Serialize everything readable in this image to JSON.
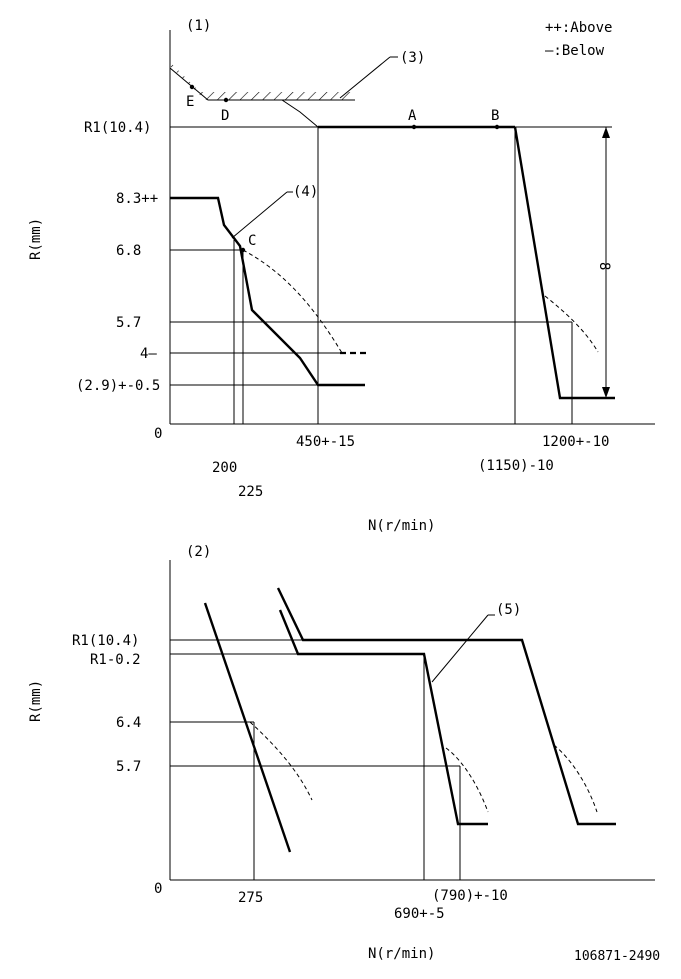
{
  "legend": {
    "above": "++:Above",
    "below": "—:Below"
  },
  "upper": {
    "panel": "(1)",
    "ylabel": "R(mm)",
    "xlabel": "N(r/min)",
    "origin": "0",
    "y_ticks": [
      "R1(10.4)",
      "8.3++",
      "6.8",
      "5.7",
      "4—",
      "(2.9)+-0.5"
    ],
    "x_ticks": [
      "200",
      "225",
      "450+-15",
      "(1150)-10",
      "1200+-10"
    ],
    "points": [
      "A",
      "B",
      "C",
      "D",
      "E"
    ],
    "callouts": [
      "(3)",
      "(4)"
    ],
    "dim": "8"
  },
  "lower": {
    "panel": "(2)",
    "ylabel": "R(mm)",
    "xlabel": "N(r/min)",
    "origin": "0",
    "y_ticks": [
      "R1(10.4)",
      "R1-0.2",
      "6.4",
      "5.7"
    ],
    "x_ticks": [
      "275",
      "690+-5",
      "(790)+-10"
    ],
    "callouts": [
      "(5)"
    ]
  },
  "doc_id": "106871-2490"
}
